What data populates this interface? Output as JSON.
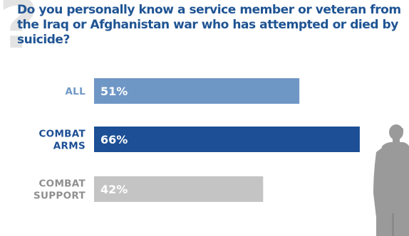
{
  "chart_data": {
    "type": "bar",
    "orientation": "horizontal",
    "title": "Do you personally know a service member or veteran from the Iraq or Afghanistan war who has attempted or died by suicide?",
    "categories": [
      {
        "lines": [
          "ALL"
        ],
        "value": 51,
        "value_label": "51%",
        "color": "#6f97c6",
        "label_color": "#6f97c6"
      },
      {
        "lines": [
          "COMBAT",
          "ARMS"
        ],
        "value": 66,
        "value_label": "66%",
        "color": "#1c4f95",
        "label_color": "#1c4f95"
      },
      {
        "lines": [
          "COMBAT",
          "SUPPORT"
        ],
        "value": 42,
        "value_label": "42%",
        "color": "#c4c4c4",
        "label_color": "#8f8f8f"
      }
    ],
    "xlim": [
      0,
      100
    ],
    "grid": false,
    "legend": "none"
  },
  "decorations": {
    "question_mark": "?",
    "question_mark_color": "#e3e3e3",
    "soldier_icon": "soldier-silhouette-icon",
    "soldier_color": "#9a9a9a",
    "title_color": "#1f5493"
  }
}
